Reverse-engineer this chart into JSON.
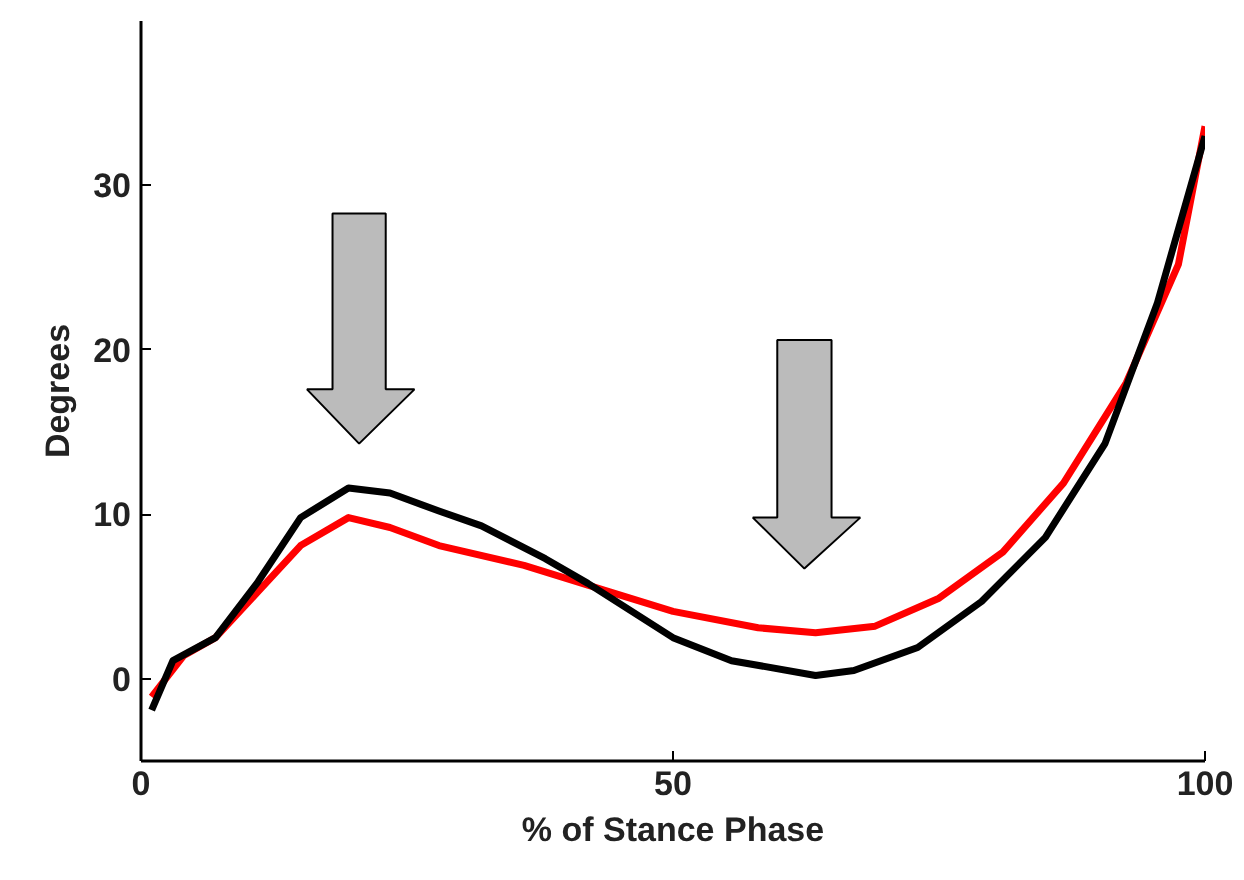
{
  "chart_data": {
    "type": "line",
    "xlabel": "% of Stance Phase",
    "ylabel": "Degrees",
    "xlim": [
      0,
      100
    ],
    "ylim": [
      -5,
      40
    ],
    "xticks": [
      0,
      50,
      100
    ],
    "yticks": [
      0,
      10,
      20,
      30
    ],
    "marker": "none",
    "line_style": "solid",
    "series": [
      {
        "color": "#ff0000",
        "x": [
          1,
          4,
          7,
          11,
          15,
          19.5,
          23.4,
          28,
          36,
          42,
          50,
          58,
          63.4,
          69,
          75,
          81,
          86.7,
          92.6,
          97.5,
          100
        ],
        "values": [
          -1.1,
          1.4,
          2.5,
          5.3,
          8.1,
          9.8,
          9.2,
          8.1,
          6.9,
          5.7,
          4.1,
          3.1,
          2.8,
          3.2,
          4.9,
          7.7,
          11.9,
          18,
          25.2,
          33.6
        ]
      },
      {
        "color": "#000000",
        "x": [
          1,
          3,
          7,
          11,
          15,
          19.5,
          23.4,
          28,
          32,
          38,
          42,
          50,
          55.5,
          63.4,
          67,
          73,
          79,
          85,
          90.6,
          95.5,
          100
        ],
        "values": [
          -1.9,
          1.1,
          2.5,
          5.9,
          9.8,
          11.6,
          11.3,
          10.2,
          9.3,
          7.3,
          5.8,
          2.5,
          1.1,
          0.2,
          0.5,
          1.9,
          4.7,
          8.6,
          14.3,
          22.8,
          33
        ]
      }
    ]
  }
}
